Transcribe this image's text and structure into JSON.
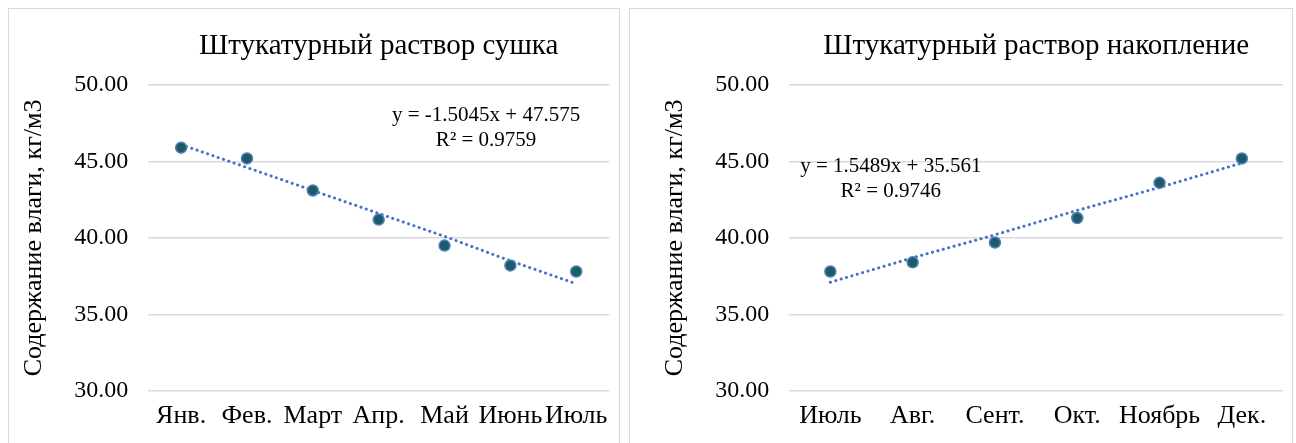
{
  "chart_data": [
    {
      "type": "scatter",
      "title": "Штукатурный раствор сушка",
      "ylabel": "Содержание влаги, кг/м3",
      "categories": [
        "Янв.",
        "Фев.",
        "Март",
        "Апр.",
        "Май",
        "Июнь",
        "Июль"
      ],
      "series": [
        {
          "color": "#1f5a69",
          "marker": "circle",
          "values": [
            45.9,
            45.2,
            43.1,
            41.2,
            39.5,
            38.2,
            37.8
          ]
        },
        {
          "type": "line",
          "color": "#4472c4",
          "line_style": "dotted",
          "marker": "none",
          "values": [
            46.1,
            44.6,
            43.1,
            41.6,
            40.1,
            38.5,
            37.0
          ]
        }
      ],
      "ylim": [
        30,
        50
      ],
      "yticks": [
        {
          "value": 30,
          "label": "30.00"
        },
        {
          "value": 35,
          "label": "35.00"
        },
        {
          "value": 40,
          "label": "40.00"
        },
        {
          "value": 45,
          "label": "45.00"
        },
        {
          "value": 50,
          "label": "50.00"
        }
      ],
      "grid": "y",
      "annotations": [
        "y = -1.5045x + 47.575",
        "R² = 0.9759"
      ]
    },
    {
      "type": "scatter",
      "title": "Штукатурный раствор накопление",
      "ylabel": "Содержание влаги, кг/м3",
      "categories": [
        "Июль",
        "Авг.",
        "Сент.",
        "Окт.",
        "Ноябрь",
        "Дек."
      ],
      "series": [
        {
          "color": "#1f5a69",
          "marker": "circle",
          "values": [
            37.8,
            38.4,
            39.7,
            41.3,
            43.6,
            45.2
          ]
        },
        {
          "type": "line",
          "color": "#4472c4",
          "line_style": "dotted",
          "marker": "none",
          "values": [
            37.1,
            38.7,
            40.2,
            41.8,
            43.3,
            44.9
          ]
        }
      ],
      "ylim": [
        30,
        50
      ],
      "yticks": [
        {
          "value": 30,
          "label": "30.00"
        },
        {
          "value": 35,
          "label": "35.00"
        },
        {
          "value": 40,
          "label": "40.00"
        },
        {
          "value": 45,
          "label": "45.00"
        },
        {
          "value": 50,
          "label": "50.00"
        }
      ],
      "grid": "y",
      "annotations": [
        "y = 1.5489x + 35.561",
        "R² = 0.9746"
      ]
    }
  ]
}
